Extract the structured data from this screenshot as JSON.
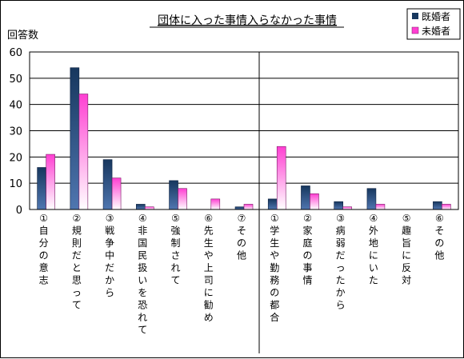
{
  "chart_data": {
    "type": "bar",
    "title": "団体に入った事情入らなかった事情",
    "ylabel": "回答数",
    "ylim": [
      0,
      60
    ],
    "yticks": [
      "0",
      "10",
      "20",
      "30",
      "40",
      "50",
      "60"
    ],
    "grid": "horizontal",
    "legend_position": "top-right",
    "categories": [
      "①自分の意志",
      "②規則だと思って",
      "③戦争中だから",
      "④非国民扱いを恐れて",
      "⑤強制されて",
      "⑥先生や上司に勧め",
      "⑦その他",
      "①学生や勤務の都合",
      "②家庭の事情",
      "③病弱だったから",
      "④外地にいた",
      "⑤趣旨に反対",
      "⑥その他"
    ],
    "series": [
      {
        "name": "既婚者",
        "color": "#17375e",
        "values": [
          16,
          54,
          19,
          2,
          11,
          0,
          1,
          4,
          9,
          3,
          8,
          0,
          3
        ]
      },
      {
        "name": "未婚者",
        "color": "#ff3fd2",
        "values": [
          21,
          44,
          12,
          1,
          8,
          4,
          2,
          24,
          6,
          1,
          2,
          0,
          2
        ]
      }
    ]
  }
}
